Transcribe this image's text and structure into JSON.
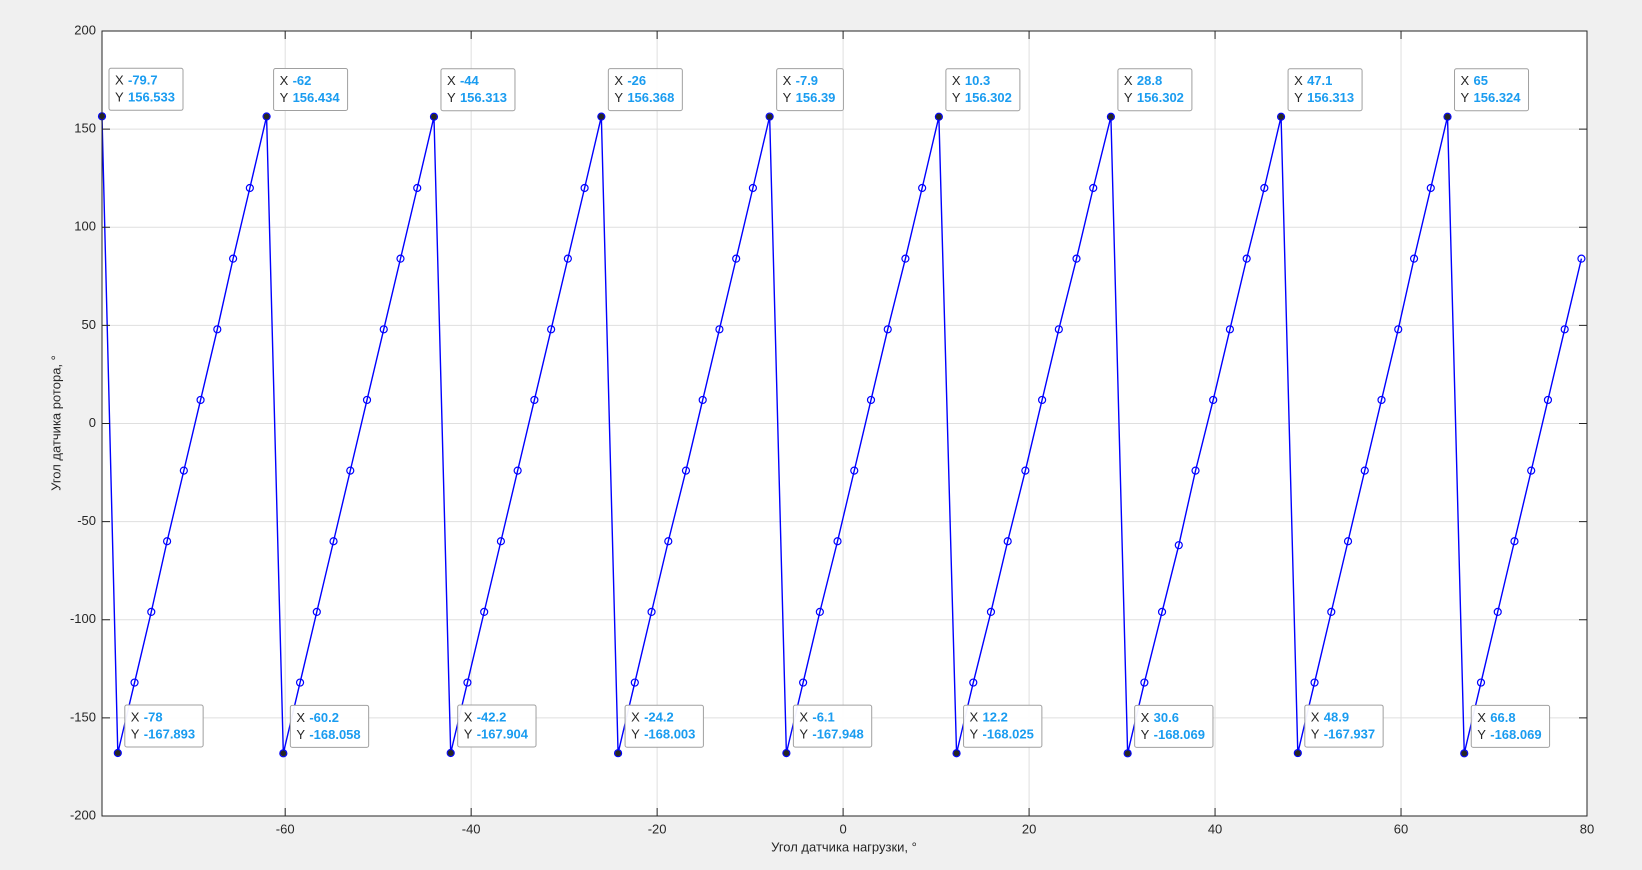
{
  "chart_data": {
    "type": "line",
    "x_label": "Угол датчика нагрузки, °",
    "y_label": "Угол датчика ротора, °",
    "x": [
      -79.7,
      -78,
      -76.2,
      -74.4,
      -72.7,
      -70.9,
      -69.1,
      -67.3,
      -65.6,
      -63.8,
      -62,
      -60.2,
      -58.4,
      -56.6,
      -54.8,
      -53,
      -51.2,
      -49.4,
      -47.6,
      -45.8,
      -44,
      -42.2,
      -40.4,
      -38.6,
      -36.8,
      -35,
      -33.2,
      -31.4,
      -29.6,
      -27.8,
      -26,
      -24.2,
      -22.4,
      -20.6,
      -18.8,
      -16.9,
      -15.1,
      -13.3,
      -11.5,
      -9.7,
      -7.9,
      -6.1,
      -4.3,
      -2.5,
      -0.6,
      1.2,
      3,
      4.8,
      6.7,
      8.5,
      10.3,
      12.2,
      14,
      15.9,
      17.7,
      19.6,
      21.4,
      23.2,
      25.1,
      26.9,
      28.8,
      30.6,
      32.4,
      34.3,
      36.1,
      37.9,
      39.8,
      41.6,
      43.4,
      45.3,
      47.1,
      48.9,
      50.7,
      52.5,
      54.3,
      56.1,
      57.9,
      59.7,
      61.4,
      63.2,
      65,
      66.8,
      68.6,
      70.4,
      72.2,
      74,
      75.8,
      77.6,
      79.4
    ],
    "series": [
      {
        "color": "#0000ff",
        "values": [
          156.533,
          -167.893,
          -132,
          -96,
          -60,
          -24,
          12,
          48,
          84,
          120,
          156.434,
          -168.058,
          -132,
          -96,
          -60,
          -24,
          12,
          48,
          84,
          120,
          156.313,
          -167.904,
          -132,
          -96,
          -60,
          -24,
          12,
          48,
          84,
          120,
          156.368,
          -168.003,
          -132,
          -96,
          -60,
          -24,
          12,
          48,
          84,
          120,
          156.39,
          -167.948,
          -132,
          -96,
          -60,
          -24,
          12,
          48,
          84,
          120,
          156.302,
          -168.025,
          -132,
          -96,
          -60,
          -24,
          12,
          48,
          84,
          120,
          156.302,
          -168.069,
          -132,
          -96,
          -62,
          -24,
          12,
          48,
          84,
          120,
          156.313,
          -167.937,
          -132,
          -96,
          -60,
          -24,
          12,
          48,
          84,
          120,
          156.324,
          -168.069,
          -132,
          -96,
          -60,
          -24,
          12,
          48,
          84
        ]
      }
    ],
    "datatips": [
      0,
      1,
      10,
      11,
      20,
      21,
      30,
      31,
      40,
      41,
      50,
      51,
      60,
      61,
      70,
      71,
      80,
      81
    ],
    "datatip_x_label": "X",
    "datatip_y_label": "Y",
    "xlim": [
      -79.7,
      80
    ],
    "ylim": [
      -200,
      200
    ],
    "xticks": [
      -60,
      -40,
      -20,
      0,
      20,
      40,
      60,
      80
    ],
    "yticks": [
      -200,
      -150,
      -100,
      -50,
      0,
      50,
      100,
      150,
      200
    ],
    "grid": true
  }
}
